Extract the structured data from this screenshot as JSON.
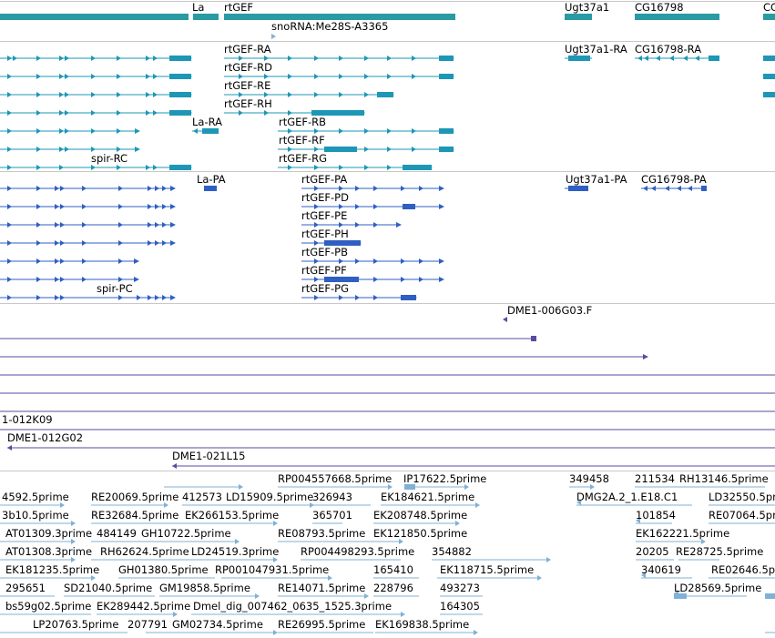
{
  "colors": {
    "gene": "#2a9aa3",
    "transcript": "#1d97b5",
    "protein": "#2f5fc2",
    "clone": "#5b4aa0",
    "est": "#7fb1d6",
    "separator": "#c8c8c8"
  },
  "tracks": {
    "genes": {
      "labels": [
        {
          "text": "La"
        },
        {
          "text": "rtGEF"
        },
        {
          "text": "snoRNA:Me28S-A3365"
        },
        {
          "text": "Ugt37a1"
        },
        {
          "text": "CG16798"
        },
        {
          "text": "CG"
        }
      ]
    },
    "transcripts": {
      "labels": [
        {
          "text": "rtGEF-RA"
        },
        {
          "text": "rtGEF-RD"
        },
        {
          "text": "rtGEF-RE"
        },
        {
          "text": "rtGEF-RH"
        },
        {
          "text": "La-RA"
        },
        {
          "text": "rtGEF-RB"
        },
        {
          "text": "rtGEF-RF"
        },
        {
          "text": "spir-RC"
        },
        {
          "text": "rtGEF-RG"
        },
        {
          "text": "Ugt37a1-RA"
        },
        {
          "text": "CG16798-RA"
        }
      ]
    },
    "proteins": {
      "labels": [
        {
          "text": "La-PA"
        },
        {
          "text": "rtGEF-PA"
        },
        {
          "text": "Ugt37a1-PA"
        },
        {
          "text": "CG16798-PA"
        },
        {
          "text": "rtGEF-PD"
        },
        {
          "text": "rtGEF-PE"
        },
        {
          "text": "rtGEF-PH"
        },
        {
          "text": "rtGEF-PB"
        },
        {
          "text": "rtGEF-PF"
        },
        {
          "text": "spir-PC"
        },
        {
          "text": "rtGEF-PG"
        }
      ]
    },
    "clones": {
      "labels": [
        {
          "text": "DME1-006G03.F"
        },
        {
          "text": "1-012K09"
        },
        {
          "text": "DME1-012G02"
        },
        {
          "text": "DME1-021L15"
        }
      ]
    },
    "ests": {
      "labels": [
        {
          "text": "RP004557668.5prime"
        },
        {
          "text": "IP17622.5prime"
        },
        {
          "text": "349458"
        },
        {
          "text": "211534"
        },
        {
          "text": "RH13146.5prime"
        },
        {
          "text": "4592.5prime"
        },
        {
          "text": "RE20069.5prime"
        },
        {
          "text": "412573"
        },
        {
          "text": "LD15909.5prime"
        },
        {
          "text": "326943"
        },
        {
          "text": "EK184621.5prime"
        },
        {
          "text": "DMG2A.2_1.E18.C1"
        },
        {
          "text": "LD32550.5prime"
        },
        {
          "text": "3b10.5prime"
        },
        {
          "text": "RE32684.5prime"
        },
        {
          "text": "EK266153.5prime"
        },
        {
          "text": "365701"
        },
        {
          "text": "EK208748.5prime"
        },
        {
          "text": "101854"
        },
        {
          "text": "RE07064.5prime"
        },
        {
          "text": "AT01309.3prime"
        },
        {
          "text": "484149"
        },
        {
          "text": "GH10722.5prime"
        },
        {
          "text": "RE08793.5prime"
        },
        {
          "text": "EK121850.5prime"
        },
        {
          "text": "EK162221.5prime"
        },
        {
          "text": "AT01308.3prime"
        },
        {
          "text": "RH62624.5prime"
        },
        {
          "text": "LD24519.3prime"
        },
        {
          "text": "RP004498293.5prime"
        },
        {
          "text": "354882"
        },
        {
          "text": "20205"
        },
        {
          "text": "RE28725.5prime"
        },
        {
          "text": "EK181235.5prime"
        },
        {
          "text": "GH01380.5prime"
        },
        {
          "text": "RP001047931.5prime"
        },
        {
          "text": "165410"
        },
        {
          "text": "EK118715.5prime"
        },
        {
          "text": "340619"
        },
        {
          "text": "RE02646.5prime"
        },
        {
          "text": "295651"
        },
        {
          "text": "SD21040.5prime"
        },
        {
          "text": "GM19858.5prime"
        },
        {
          "text": "RE14071.5prime"
        },
        {
          "text": "228796"
        },
        {
          "text": "493273"
        },
        {
          "text": "LD28569.5prime"
        },
        {
          "text": "bs59g02.5prime"
        },
        {
          "text": "EK289442.5prime"
        },
        {
          "text": "Dmel_dig_007462_0635_1525.3prime"
        },
        {
          "text": "164305"
        },
        {
          "text": "LP20763.5prime"
        },
        {
          "text": "207791"
        },
        {
          "text": "GM02734.5prime"
        },
        {
          "text": "RE26995.5prime"
        },
        {
          "text": "EK169838.5prime"
        }
      ]
    }
  }
}
